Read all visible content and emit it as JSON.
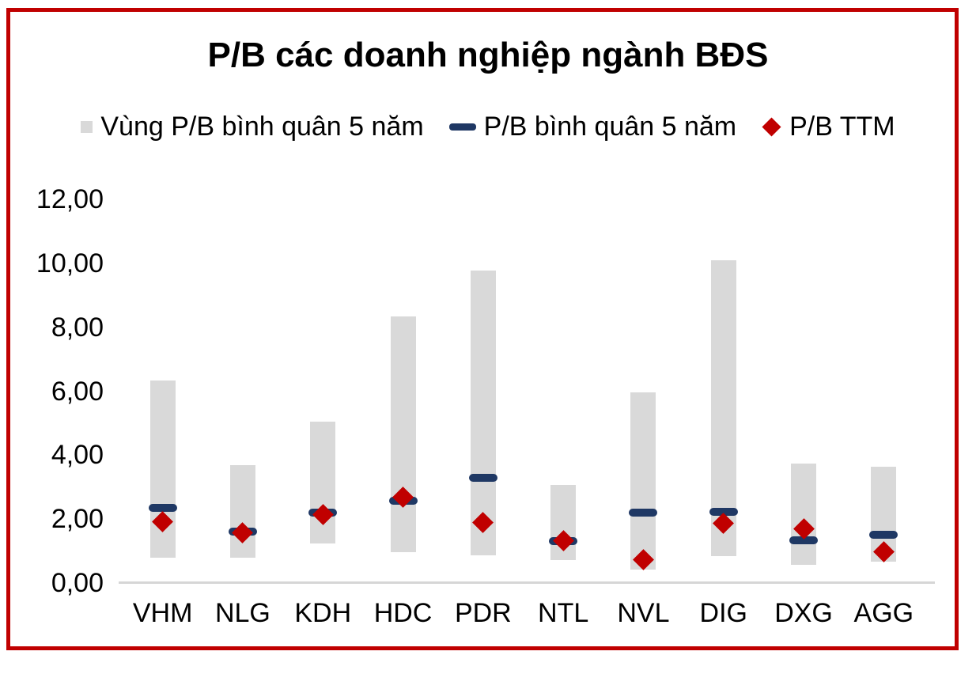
{
  "title": "P/B các doanh nghiệp ngành BĐS",
  "colors": {
    "range_bar": "#D9D9D9",
    "average_dash": "#1F3864",
    "ttm_diamond": "#C00000",
    "frame_border": "#C00000",
    "axis_line": "#D6D6D6",
    "text": "#000000"
  },
  "legend": {
    "items": [
      {
        "label": "Vùng P/B bình quân 5 năm",
        "marker": "square"
      },
      {
        "label": "P/B bình quân 5 năm",
        "marker": "dash"
      },
      {
        "label": "P/B TTM",
        "marker": "diamond"
      }
    ]
  },
  "chart_data": {
    "type": "bar",
    "subtype": "floating-range-bars-with-markers",
    "title": "P/B các doanh nghiệp ngành BĐS",
    "categories": [
      "VHM",
      "NLG",
      "KDH",
      "HDC",
      "PDR",
      "NTL",
      "NVL",
      "DIG",
      "DXG",
      "AGG"
    ],
    "series": [
      {
        "name": "Vùng P/B bình quân 5 năm",
        "type": "range",
        "low": [
          0.78,
          0.78,
          1.23,
          0.96,
          0.86,
          0.72,
          0.41,
          0.84,
          0.56,
          0.66
        ],
        "high": [
          6.33,
          3.7,
          5.04,
          8.35,
          9.77,
          3.06,
          5.96,
          10.1,
          3.75,
          3.65
        ]
      },
      {
        "name": "P/B bình quân 5 năm",
        "type": "dash-marker",
        "values": [
          2.35,
          1.6,
          2.2,
          2.57,
          3.28,
          1.3,
          2.2,
          2.22,
          1.33,
          1.5
        ]
      },
      {
        "name": "P/B TTM",
        "type": "diamond-marker",
        "values": [
          1.92,
          1.58,
          2.15,
          2.68,
          1.9,
          1.33,
          0.73,
          1.87,
          1.7,
          0.98
        ]
      }
    ],
    "xlabel": "",
    "ylabel": "",
    "ylim": [
      0,
      12
    ],
    "yticks": {
      "values": [
        0,
        2,
        4,
        6,
        8,
        10,
        12
      ],
      "labels": [
        "0,00",
        "2,00",
        "4,00",
        "6,00",
        "8,00",
        "10,00",
        "12,00"
      ]
    },
    "grid": false,
    "legend_position": "top"
  }
}
